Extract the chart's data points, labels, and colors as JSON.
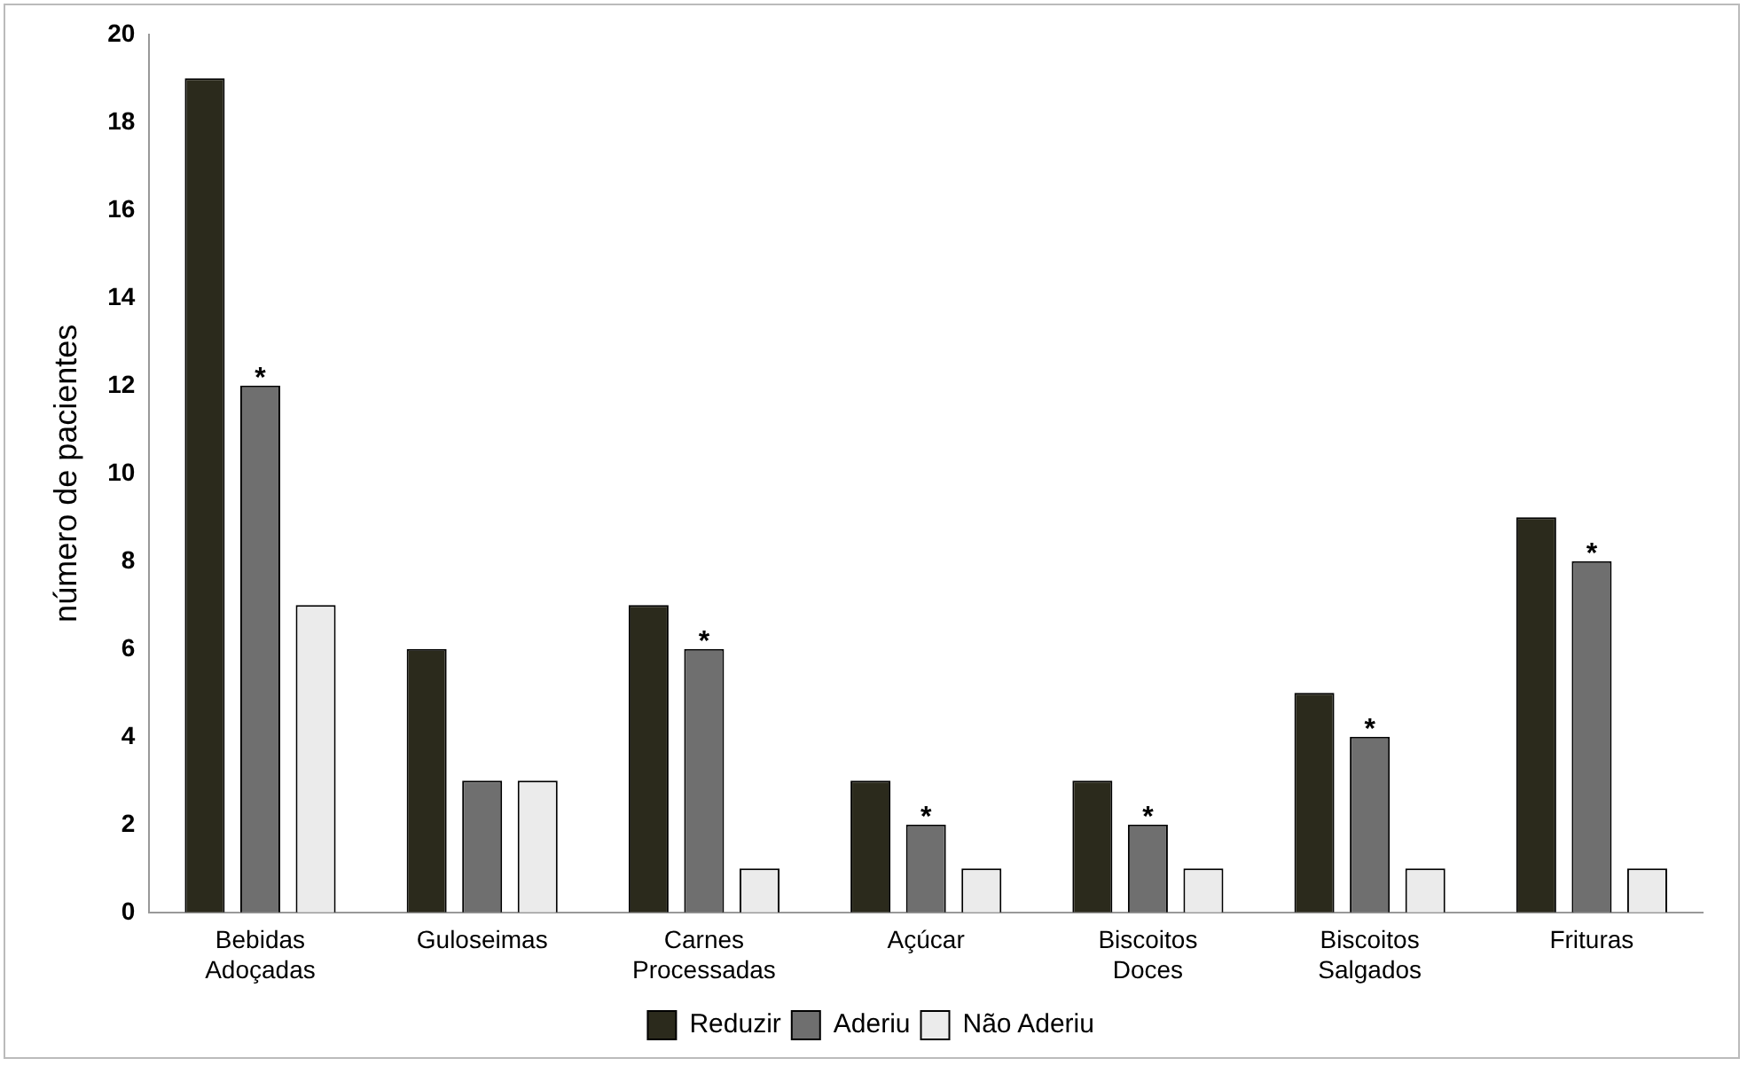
{
  "chart_data": {
    "type": "bar",
    "categories": [
      "Bebidas Adoçadas",
      "Guloseimas",
      "Carnes Processadas",
      "Açúcar",
      "Biscoitos Doces",
      "Biscoitos Salgados",
      "Frituras"
    ],
    "series": [
      {
        "name": "Reduzir",
        "color": "#2b2a1c",
        "values": [
          19,
          6,
          7,
          3,
          3,
          5,
          9
        ]
      },
      {
        "name": "Aderiu",
        "color": "#6f6f6f",
        "values": [
          12,
          3,
          6,
          2,
          2,
          4,
          8
        ]
      },
      {
        "name": "Não Aderiu",
        "color": "#ebebeb",
        "values": [
          7,
          3,
          1,
          1,
          1,
          1,
          1
        ]
      }
    ],
    "ylabel": "número de pacientes",
    "ylim": [
      0,
      20
    ],
    "yticks": [
      0,
      2,
      4,
      6,
      8,
      10,
      12,
      14,
      16,
      18,
      20
    ],
    "grid": false,
    "legend": "bottom",
    "annotations": [
      {
        "text": "*",
        "x": "Bebidas Adoçadas",
        "y": 12
      },
      {
        "text": "*",
        "x": "Carnes Processadas",
        "y": 6
      },
      {
        "text": "*",
        "x": "Açúcar",
        "y": 2
      },
      {
        "text": "*",
        "x": "Biscoitos Doces",
        "y": 2
      },
      {
        "text": "*",
        "x": "Biscoitos Salgados",
        "y": 4
      },
      {
        "text": "*",
        "x": "Frituras",
        "y": 8
      }
    ]
  }
}
